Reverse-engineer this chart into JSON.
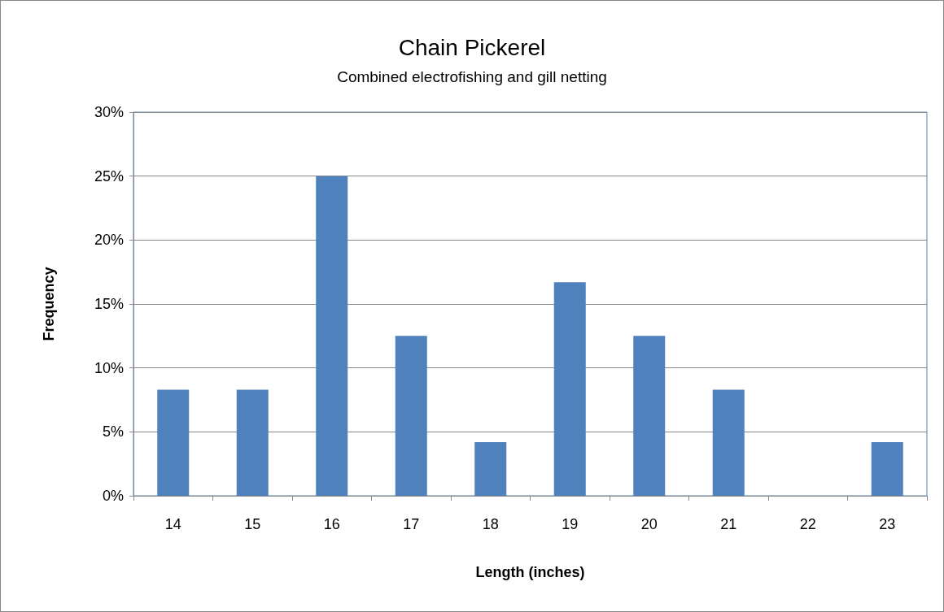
{
  "chart_data": {
    "type": "bar",
    "title": "Chain Pickerel",
    "subtitle": "Combined electrofishing and gill netting",
    "xlabel": "Length (inches)",
    "ylabel": "Frequency",
    "categories": [
      "14",
      "15",
      "16",
      "17",
      "18",
      "19",
      "20",
      "21",
      "22",
      "23"
    ],
    "values": [
      8.3,
      8.3,
      25,
      12.5,
      4.2,
      16.7,
      12.5,
      8.3,
      0,
      4.2
    ],
    "color": "#4f81bd",
    "ylim": [
      0,
      30
    ],
    "yticks": [
      {
        "value": 0,
        "label": "0%"
      },
      {
        "value": 5,
        "label": "5%"
      },
      {
        "value": 10,
        "label": "10%"
      },
      {
        "value": 15,
        "label": "15%"
      },
      {
        "value": 20,
        "label": "20%"
      },
      {
        "value": 25,
        "label": "25%"
      },
      {
        "value": 30,
        "label": "30%"
      }
    ],
    "grid": "y"
  }
}
